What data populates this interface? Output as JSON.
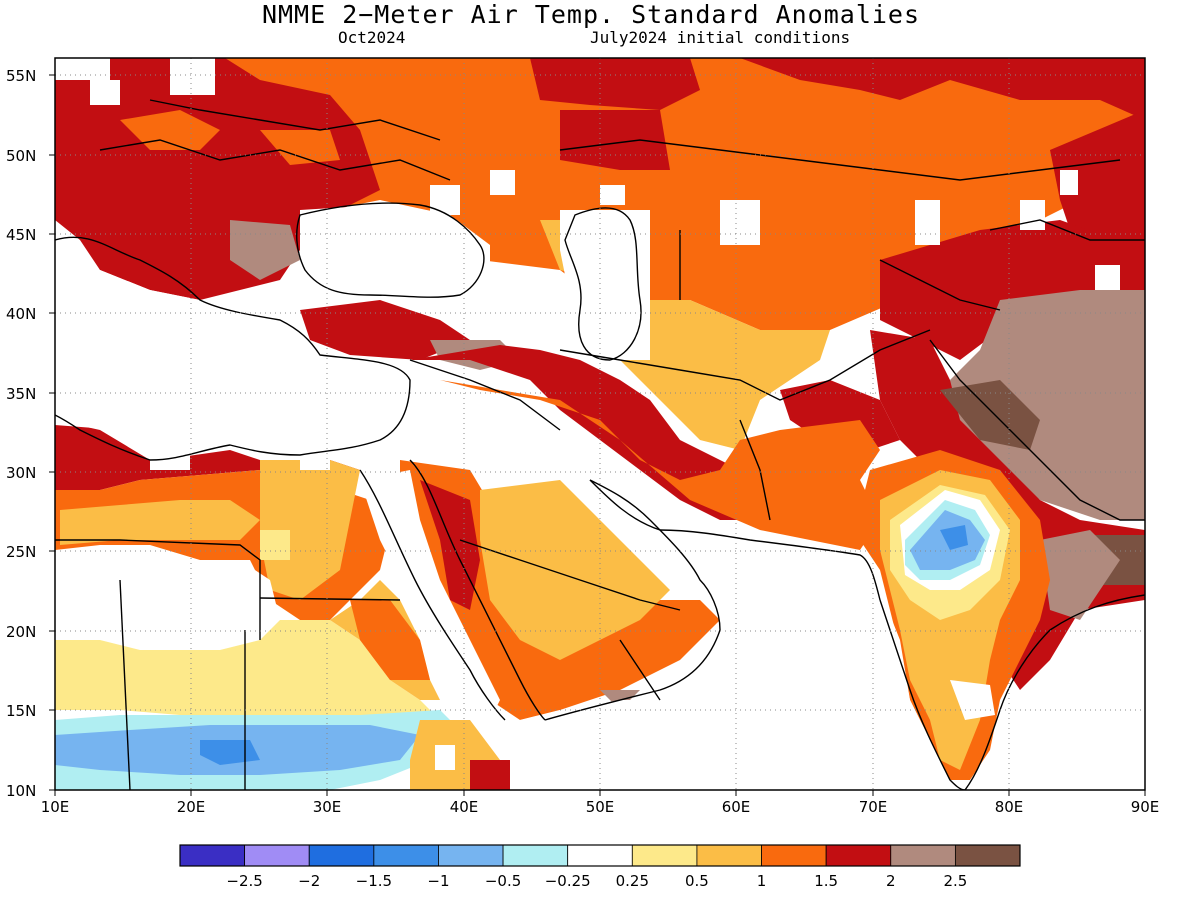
{
  "title": "NMME 2−Meter Air Temp. Standard Anomalies",
  "subtitle_left": "Oct2024",
  "subtitle_right": "July2024 initial conditions",
  "map": {
    "lat_labels": [
      "55N",
      "50N",
      "45N",
      "40N",
      "35N",
      "30N",
      "25N",
      "20N",
      "15N",
      "10N"
    ],
    "lon_labels": [
      "10E",
      "20E",
      "30E",
      "40E",
      "50E",
      "60E",
      "70E",
      "80E",
      "90E"
    ],
    "lat_range": [
      10,
      56
    ],
    "lon_range": [
      10,
      90
    ]
  },
  "colorbar": {
    "labels": [
      "−2.5",
      "−2",
      "−1.5",
      "−1",
      "−0.5",
      "−0.25",
      "0.25",
      "0.5",
      "1",
      "1.5",
      "2",
      "2.5"
    ],
    "colors": [
      "#3a2ec4",
      "#a08cf5",
      "#1f6ee0",
      "#3d8fe8",
      "#76b4f0",
      "#b0eef2",
      "#ffffff",
      "#fde98a",
      "#fbbd46",
      "#f96a0e",
      "#c20e12",
      "#b08a7e",
      "#7a5242"
    ]
  }
}
